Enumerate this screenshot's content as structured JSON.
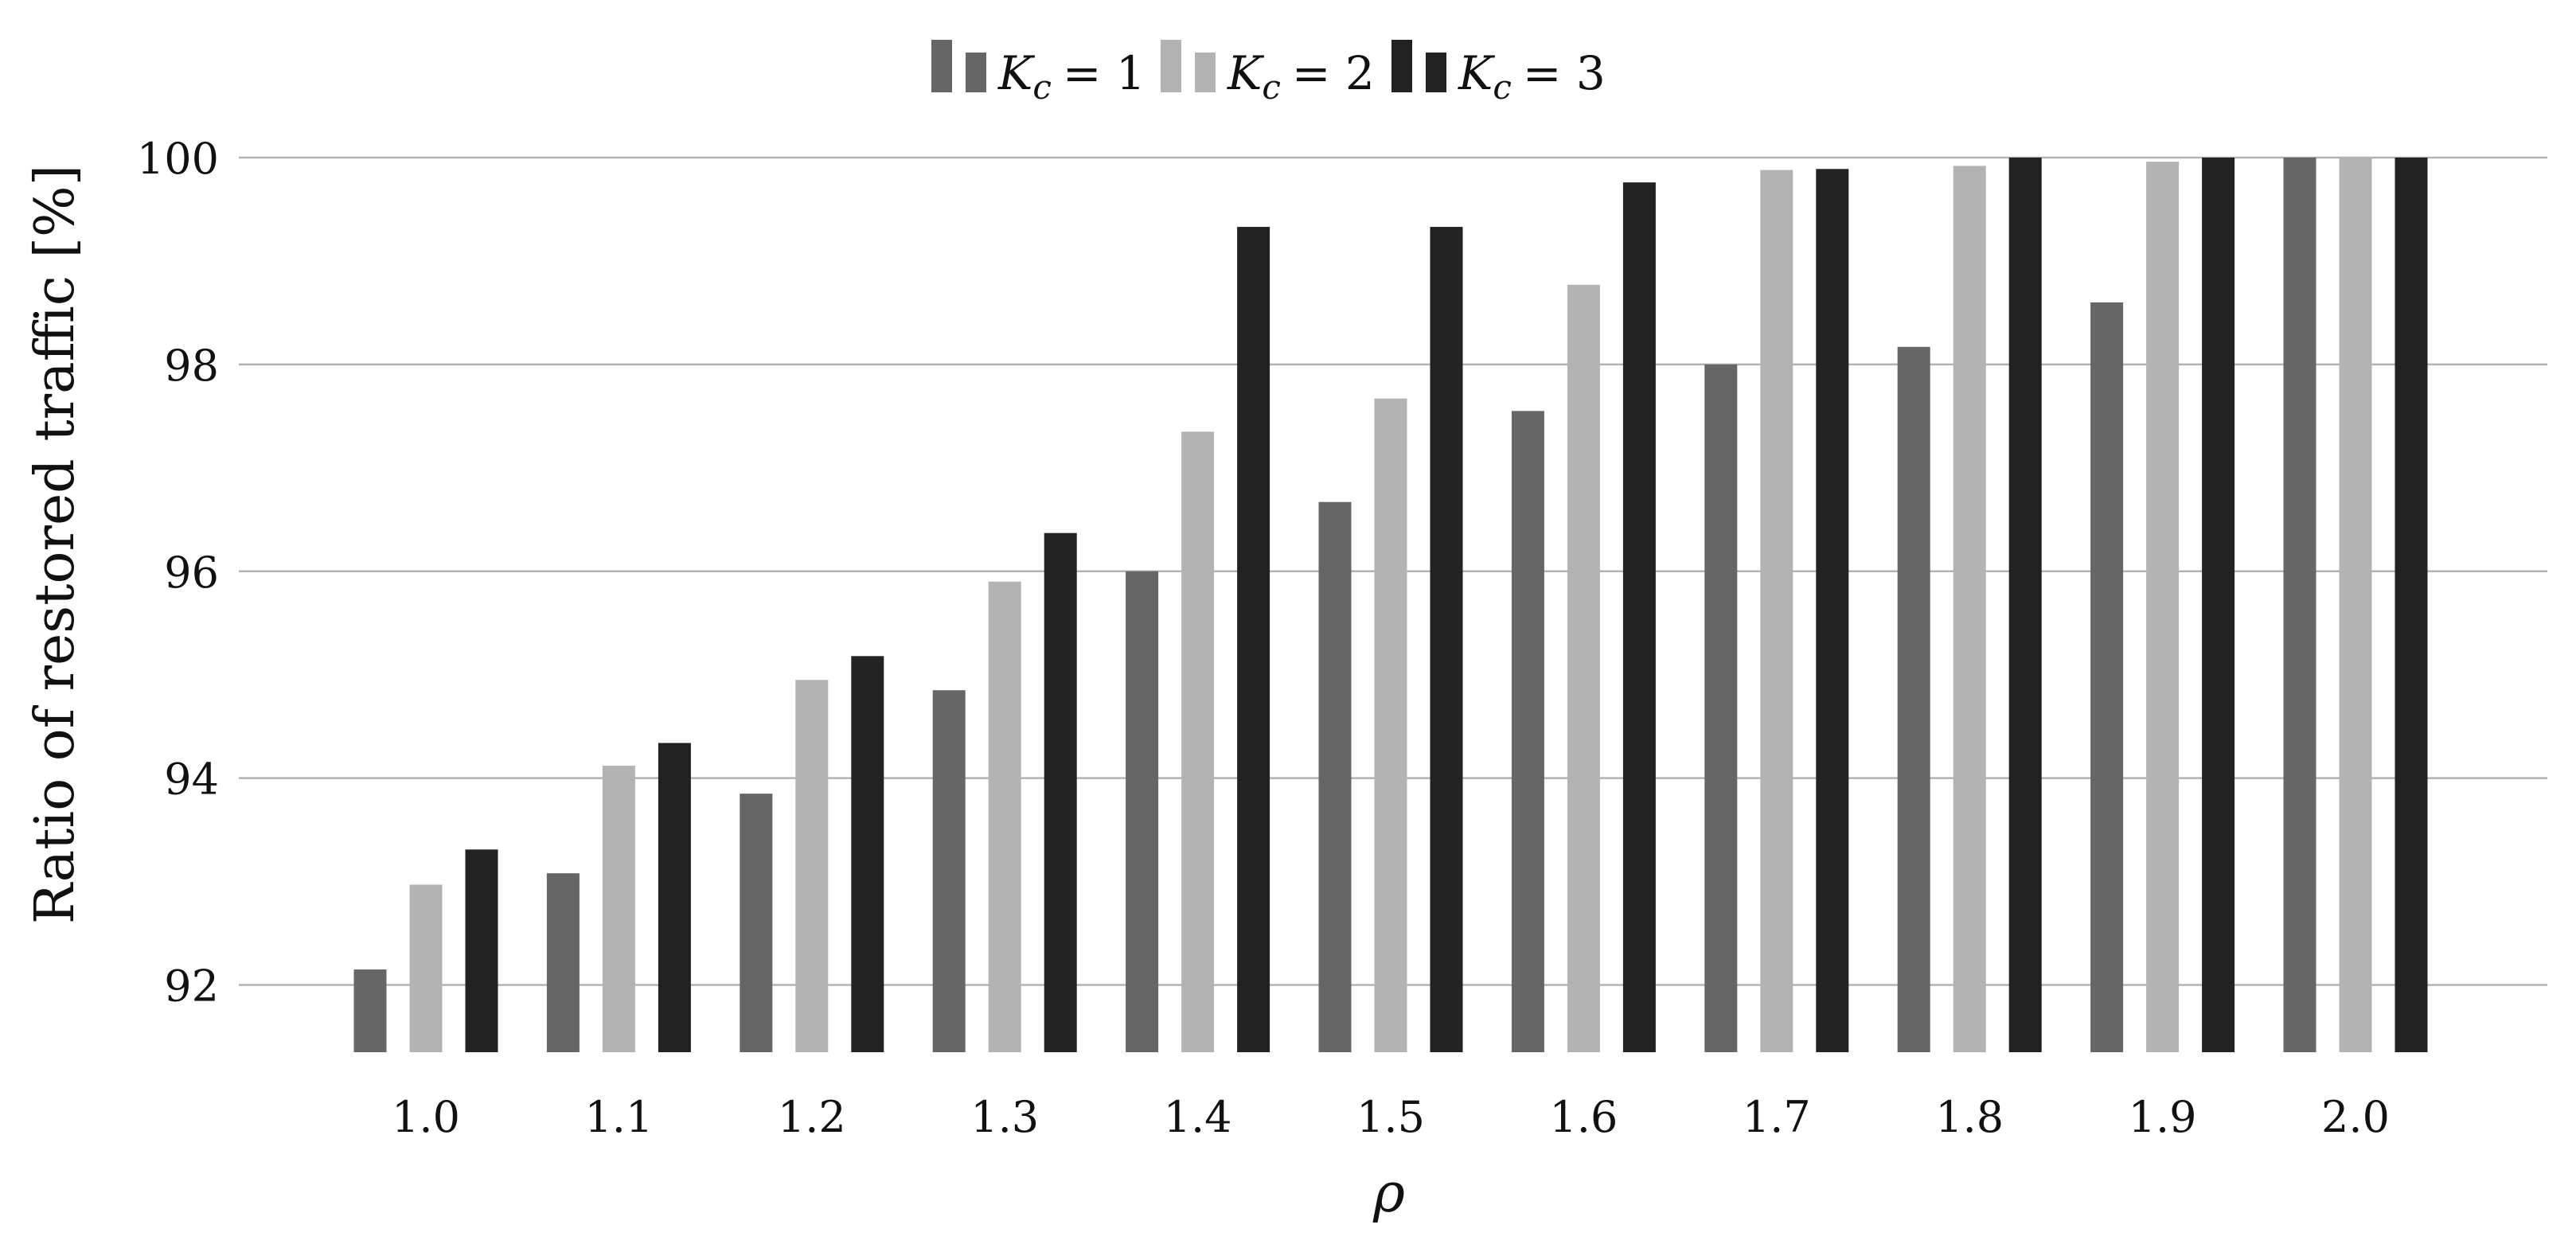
{
  "chart_data": {
    "type": "bar",
    "xlabel": "ρ",
    "ylabel": "Ratio of restored traffic [%]",
    "categories": [
      "1.0",
      "1.1",
      "1.2",
      "1.3",
      "1.4",
      "1.5",
      "1.6",
      "1.7",
      "1.8",
      "1.9",
      "2.0"
    ],
    "ylim": [
      91.35,
      100.0
    ],
    "yticks": [
      92,
      94,
      96,
      98,
      100
    ],
    "grid": "horizontal",
    "legend_position": "top-center",
    "series": [
      {
        "var": "K",
        "sub": "c",
        "eq": "= 1",
        "color": "#666666",
        "values": [
          92.15,
          93.08,
          93.85,
          94.85,
          96.0,
          96.67,
          97.55,
          98.0,
          98.17,
          98.6,
          100.0
        ]
      },
      {
        "var": "K",
        "sub": "c",
        "eq": "= 2",
        "color": "#b3b3b3",
        "values": [
          92.97,
          94.12,
          94.95,
          95.9,
          97.35,
          97.67,
          98.77,
          99.88,
          99.92,
          99.96,
          100.0
        ]
      },
      {
        "var": "K",
        "sub": "c",
        "eq": "= 3",
        "color": "#222222",
        "values": [
          93.31,
          94.34,
          95.18,
          96.37,
          99.33,
          99.33,
          99.76,
          99.89,
          100.0,
          100.0,
          100.0
        ]
      }
    ]
  }
}
